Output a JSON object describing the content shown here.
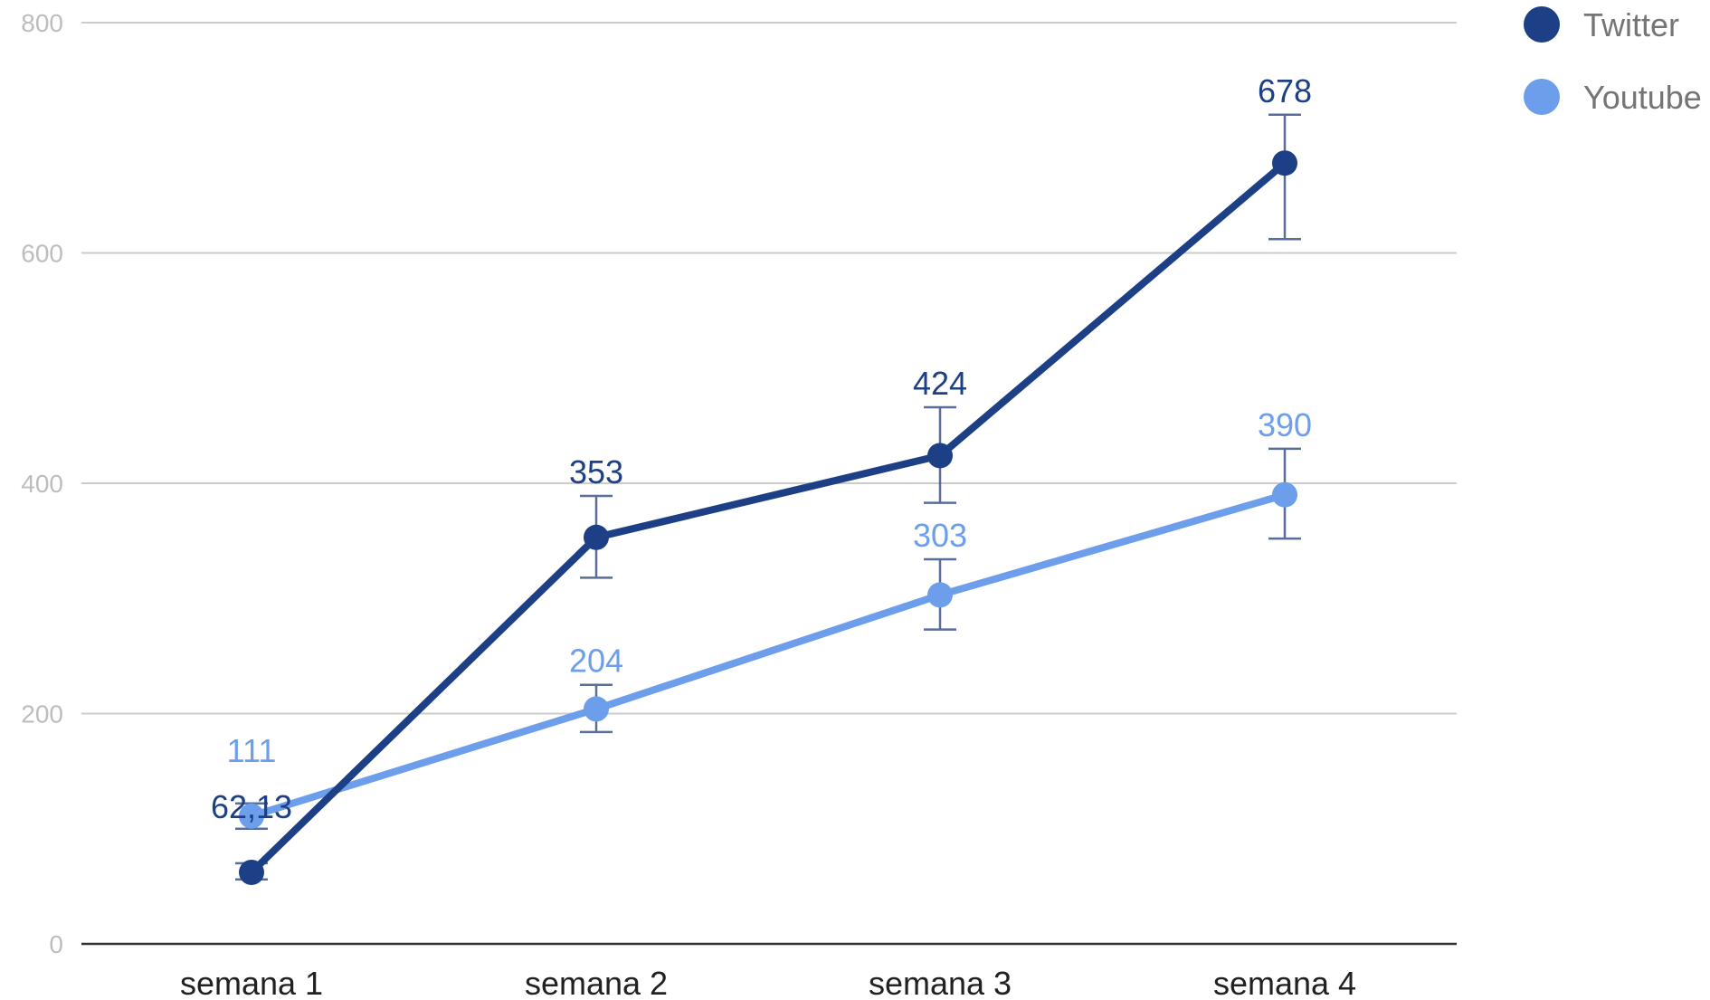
{
  "chart_data": {
    "type": "line",
    "categories": [
      "semana 1",
      "semana 2",
      "semana 3",
      "semana 4"
    ],
    "ylim": [
      0,
      800
    ],
    "yticks": [
      0,
      200,
      400,
      600,
      800
    ],
    "grid": true,
    "legend_position": "top-right",
    "series": [
      {
        "name": "Twitter",
        "color": "#1c3f86",
        "values": [
          62.13,
          353,
          424,
          678
        ],
        "labels": [
          "62,13",
          "353",
          "424",
          "678"
        ],
        "error_low": [
          56,
          318,
          383,
          612
        ],
        "error_high": [
          70,
          389,
          466,
          720
        ]
      },
      {
        "name": "Youtube",
        "color": "#6d9eeb",
        "values": [
          111,
          204,
          303,
          390
        ],
        "labels": [
          "111",
          "204",
          "303",
          "390"
        ],
        "error_low": [
          100,
          184,
          273,
          352
        ],
        "error_high": [
          122,
          225,
          334,
          430
        ]
      }
    ]
  }
}
